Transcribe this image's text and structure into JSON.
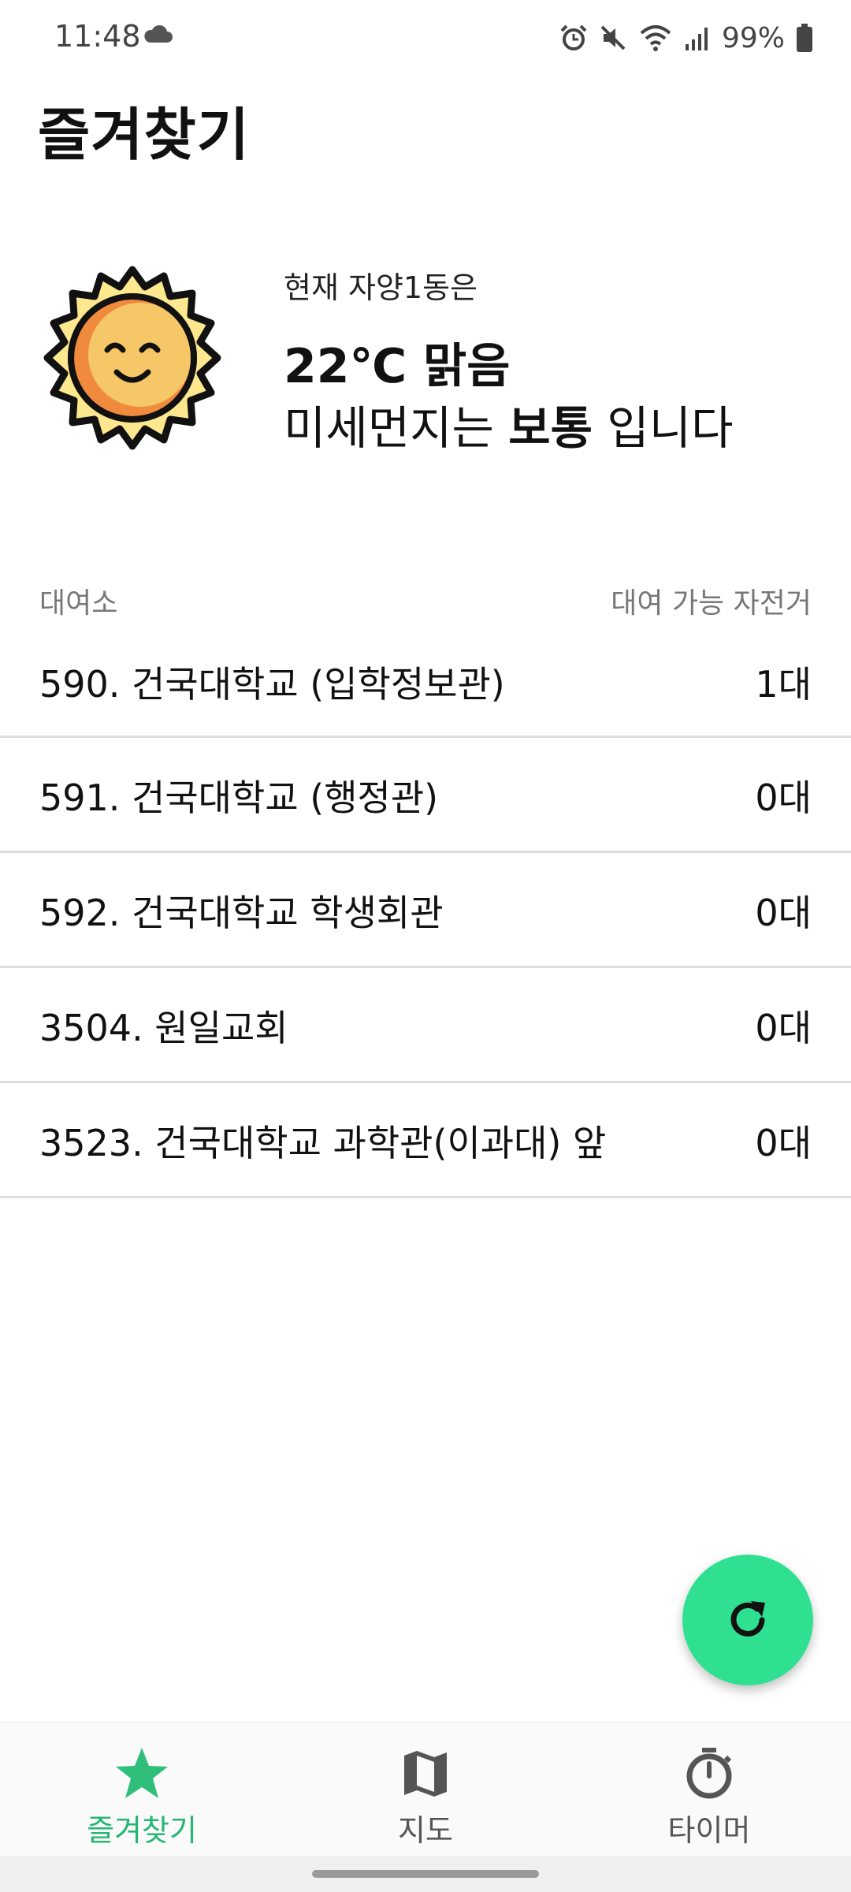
{
  "status": {
    "time": "11:48",
    "battery": "99%",
    "icons": [
      "cloud-icon",
      "alarm-icon",
      "mute-icon",
      "wifi-icon",
      "signal-icon",
      "battery-icon"
    ]
  },
  "page": {
    "title": "즐겨찾기"
  },
  "weather": {
    "location": "현재 자양1동은",
    "temperature": "22℃ 맑음",
    "dust_prefix": "미세먼지는",
    "dust_level": "보통",
    "dust_suffix": "입니다",
    "icon": "sun-icon"
  },
  "list": {
    "header_left": "대여소",
    "header_right": "대여 가능 자전거",
    "stations": [
      {
        "name": "590. 건국대학교 (입학정보관)",
        "count": "1대"
      },
      {
        "name": "591. 건국대학교 (행정관)",
        "count": "0대"
      },
      {
        "name": "592. 건국대학교 학생회관",
        "count": "0대"
      },
      {
        "name": "3504. 원일교회",
        "count": "0대"
      },
      {
        "name": "3523. 건국대학교 과학관(이과대) 앞",
        "count": "0대"
      }
    ]
  },
  "fab": {
    "icon": "refresh-icon"
  },
  "nav": {
    "items": [
      {
        "label": "즐겨찾기",
        "icon": "star-icon",
        "active": true
      },
      {
        "label": "지도",
        "icon": "map-icon",
        "active": false
      },
      {
        "label": "타이머",
        "icon": "timer-icon",
        "active": false
      }
    ]
  },
  "colors": {
    "accent": "#2fe091",
    "accent_text": "#26b673",
    "sun_face": "#f6c766",
    "sun_rays": "#fde88f"
  }
}
